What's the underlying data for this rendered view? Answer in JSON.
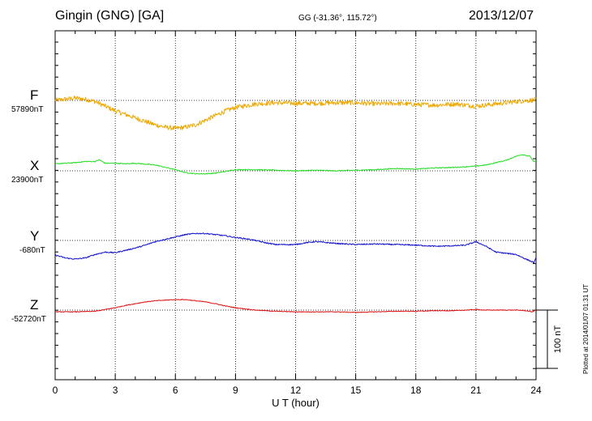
{
  "header": {
    "station": "Gingin (GNG)  [GA]",
    "coords": "GG (-31.36°, 115.72°)",
    "date": "2013/12/07"
  },
  "plotted_note": "Plotted at 2014/01/07 01:31  UT",
  "colors": {
    "F": "#f0a800",
    "X": "#22dd22",
    "Y": "#1010cc",
    "Z": "#dd1111",
    "grid": "#000000"
  },
  "chart_data": {
    "type": "line",
    "title": "Gingin (GNG)  [GA]",
    "xlabel": "U T (hour)",
    "xlim": [
      0,
      24
    ],
    "xticks": [
      0,
      3,
      6,
      9,
      12,
      15,
      18,
      21,
      24
    ],
    "ylabel": "",
    "scale_bar": {
      "value_nT": 100,
      "label": "100 nT"
    },
    "series": [
      {
        "name": "F",
        "baseline_label": "57890nT",
        "baseline_nT": 57890,
        "noise_nT": 4,
        "points": [
          [
            0.0,
            57890
          ],
          [
            0.5,
            57892
          ],
          [
            1.0,
            57894
          ],
          [
            1.5,
            57892
          ],
          [
            2.0,
            57888
          ],
          [
            2.5,
            57880
          ],
          [
            3.0,
            57872
          ],
          [
            3.5,
            57866
          ],
          [
            4.0,
            57860
          ],
          [
            4.5,
            57854
          ],
          [
            5.0,
            57848
          ],
          [
            5.5,
            57844
          ],
          [
            6.0,
            57842
          ],
          [
            6.5,
            57844
          ],
          [
            7.0,
            57848
          ],
          [
            7.5,
            57856
          ],
          [
            8.0,
            57864
          ],
          [
            8.5,
            57872
          ],
          [
            9.0,
            57878
          ],
          [
            9.5,
            57881
          ],
          [
            10.0,
            57884
          ],
          [
            11.0,
            57886
          ],
          [
            12.0,
            57885
          ],
          [
            13.0,
            57885
          ],
          [
            14.0,
            57886
          ],
          [
            15.0,
            57886
          ],
          [
            16.0,
            57884
          ],
          [
            17.0,
            57885
          ],
          [
            18.0,
            57883
          ],
          [
            19.0,
            57882
          ],
          [
            20.0,
            57884
          ],
          [
            21.0,
            57880
          ],
          [
            22.0,
            57884
          ],
          [
            23.0,
            57888
          ],
          [
            24.0,
            57891
          ]
        ]
      },
      {
        "name": "X",
        "baseline_label": "23900nT",
        "baseline_nT": 23900,
        "noise_nT": 0.8,
        "points": [
          [
            0.0,
            23912
          ],
          [
            1.0,
            23914
          ],
          [
            1.5,
            23916
          ],
          [
            2.0,
            23916
          ],
          [
            2.2,
            23919
          ],
          [
            2.5,
            23913
          ],
          [
            3.0,
            23913
          ],
          [
            3.5,
            23912
          ],
          [
            4.0,
            23913
          ],
          [
            5.0,
            23910
          ],
          [
            5.5,
            23906
          ],
          [
            6.0,
            23902
          ],
          [
            6.5,
            23897
          ],
          [
            7.0,
            23895
          ],
          [
            7.5,
            23895
          ],
          [
            8.0,
            23896
          ],
          [
            8.5,
            23899
          ],
          [
            9.0,
            23902
          ],
          [
            10.0,
            23902
          ],
          [
            11.0,
            23901
          ],
          [
            12.0,
            23900
          ],
          [
            13.0,
            23901
          ],
          [
            14.0,
            23900
          ],
          [
            15.0,
            23901
          ],
          [
            16.0,
            23902
          ],
          [
            17.0,
            23904
          ],
          [
            18.0,
            23903
          ],
          [
            19.0,
            23905
          ],
          [
            20.0,
            23906
          ],
          [
            21.0,
            23908
          ],
          [
            21.5,
            23910
          ],
          [
            22.0,
            23914
          ],
          [
            22.5,
            23918
          ],
          [
            23.0,
            23925
          ],
          [
            23.3,
            23928
          ],
          [
            23.7,
            23925
          ],
          [
            23.9,
            23915
          ],
          [
            24.0,
            23918
          ]
        ]
      },
      {
        "name": "Y",
        "baseline_label": "-680nT",
        "baseline_nT": -680,
        "noise_nT": 1.0,
        "points": [
          [
            0.0,
            -705
          ],
          [
            0.5,
            -710
          ],
          [
            1.0,
            -712
          ],
          [
            1.5,
            -710
          ],
          [
            2.0,
            -704
          ],
          [
            2.5,
            -700
          ],
          [
            3.0,
            -701
          ],
          [
            3.5,
            -697
          ],
          [
            4.0,
            -693
          ],
          [
            4.5,
            -688
          ],
          [
            5.0,
            -682
          ],
          [
            5.5,
            -678
          ],
          [
            6.0,
            -674
          ],
          [
            6.5,
            -670
          ],
          [
            7.0,
            -668
          ],
          [
            7.5,
            -668
          ],
          [
            8.0,
            -670
          ],
          [
            8.5,
            -672
          ],
          [
            9.0,
            -675
          ],
          [
            9.5,
            -677
          ],
          [
            10.0,
            -680
          ],
          [
            10.5,
            -684
          ],
          [
            11.0,
            -687
          ],
          [
            12.0,
            -687
          ],
          [
            12.5,
            -684
          ],
          [
            13.0,
            -682
          ],
          [
            14.0,
            -685
          ],
          [
            15.0,
            -687
          ],
          [
            16.0,
            -686
          ],
          [
            17.0,
            -687
          ],
          [
            18.0,
            -688
          ],
          [
            19.0,
            -690
          ],
          [
            20.0,
            -689
          ],
          [
            20.5,
            -688
          ],
          [
            21.0,
            -682
          ],
          [
            21.5,
            -690
          ],
          [
            22.0,
            -700
          ],
          [
            22.5,
            -702
          ],
          [
            23.0,
            -704
          ],
          [
            23.5,
            -712
          ],
          [
            23.9,
            -718
          ],
          [
            24.0,
            -710
          ]
        ]
      },
      {
        "name": "Z",
        "baseline_label": "-52720nT",
        "baseline_nT": -52720,
        "noise_nT": 0.6,
        "points": [
          [
            0.0,
            -52723
          ],
          [
            1.0,
            -52723
          ],
          [
            2.0,
            -52722
          ],
          [
            2.5,
            -52719
          ],
          [
            3.0,
            -52716
          ],
          [
            3.5,
            -52712
          ],
          [
            4.0,
            -52709
          ],
          [
            4.5,
            -52706
          ],
          [
            5.0,
            -52704
          ],
          [
            5.5,
            -52703
          ],
          [
            6.0,
            -52702
          ],
          [
            6.5,
            -52702
          ],
          [
            7.0,
            -52704
          ],
          [
            7.5,
            -52706
          ],
          [
            8.0,
            -52709
          ],
          [
            8.5,
            -52713
          ],
          [
            9.0,
            -52716
          ],
          [
            9.5,
            -52718
          ],
          [
            10.0,
            -52720
          ],
          [
            11.0,
            -52722
          ],
          [
            12.0,
            -52723
          ],
          [
            13.0,
            -52723
          ],
          [
            14.0,
            -52723
          ],
          [
            15.0,
            -52724
          ],
          [
            16.0,
            -52723
          ],
          [
            17.0,
            -52722
          ],
          [
            18.0,
            -52722
          ],
          [
            19.0,
            -52721
          ],
          [
            20.0,
            -52721
          ],
          [
            20.5,
            -52720
          ],
          [
            21.0,
            -52719
          ],
          [
            21.5,
            -52720
          ],
          [
            22.0,
            -52720
          ],
          [
            23.0,
            -52720
          ],
          [
            23.5,
            -52721
          ],
          [
            23.8,
            -52723
          ],
          [
            24.0,
            -52720
          ]
        ]
      }
    ]
  }
}
